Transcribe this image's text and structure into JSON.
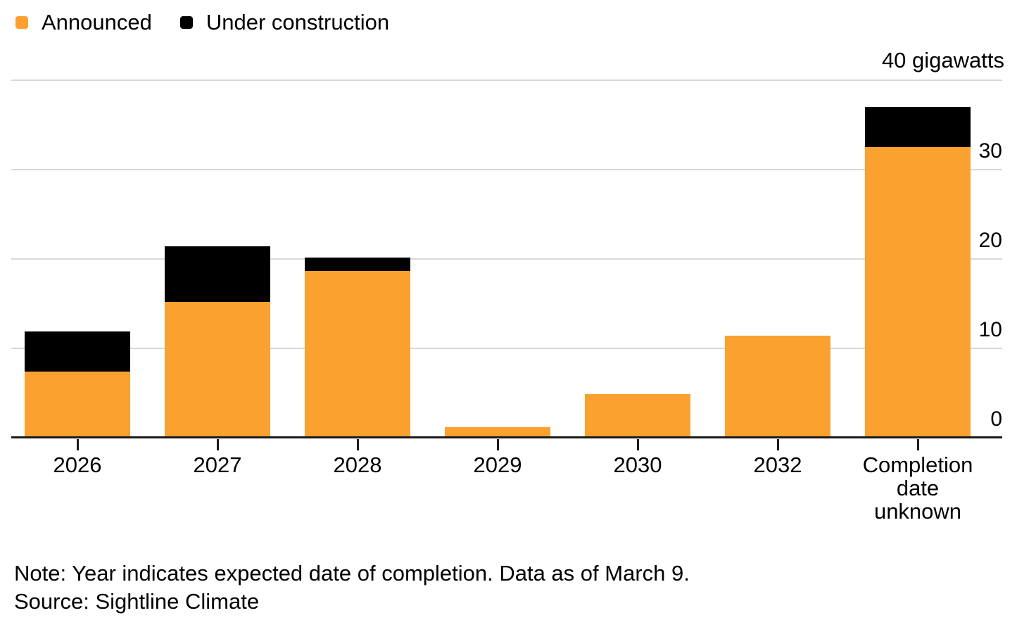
{
  "legend": {
    "items": [
      {
        "label": "Announced",
        "color": "#FAA12F"
      },
      {
        "label": "Under construction",
        "color": "#000000"
      }
    ]
  },
  "axis": {
    "top_label": "40 gigawatts",
    "yticks": [
      0,
      10,
      20,
      30
    ],
    "ylim": [
      0,
      40
    ]
  },
  "chart_data": {
    "type": "bar",
    "stacked": true,
    "categories": [
      "2026",
      "2027",
      "2028",
      "2029",
      "2030",
      "2032",
      "Completion date unknown"
    ],
    "series": [
      {
        "name": "Announced",
        "color": "#FAA12F",
        "values": [
          7.4,
          15.2,
          18.7,
          1.2,
          4.9,
          11.4,
          32.5
        ]
      },
      {
        "name": "Under construction",
        "color": "#000000",
        "values": [
          4.5,
          6.2,
          1.5,
          0,
          0,
          0,
          4.5
        ]
      }
    ],
    "title": "",
    "xlabel": "",
    "ylabel": "gigawatts",
    "ylim": [
      0,
      40
    ],
    "ytick_interval": 10,
    "yaxis_side": "right",
    "grid": true,
    "legend_position": "top-left",
    "colors": {
      "grid": "#d8d8d8",
      "axis": "#1a1a1a",
      "text": "#000000",
      "background": "#ffffff"
    }
  },
  "footer": {
    "note": "Note: Year indicates expected date of completion. Data as of March 9.",
    "source": "Source: Sightline Climate"
  }
}
